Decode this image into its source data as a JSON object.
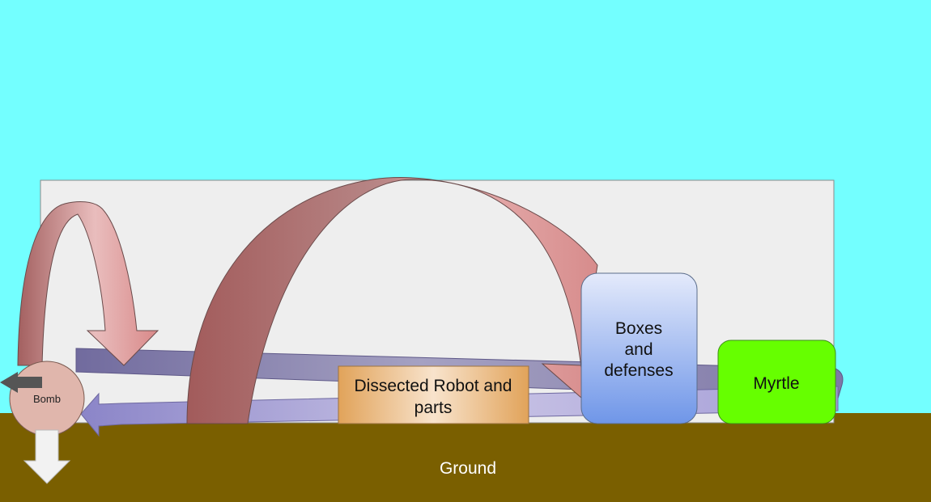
{
  "diagram": {
    "nodes": {
      "bomb": {
        "label": "Bomb"
      },
      "robot": {
        "label_line1": "Dissected Robot and",
        "label_line2": "parts"
      },
      "boxes": {
        "label_line1": "Boxes",
        "label_line2": "and",
        "label_line3": "defenses"
      },
      "myrtle": {
        "label": "Myrtle"
      },
      "ground": {
        "label": "Ground"
      }
    }
  },
  "colors": {
    "sky": "#73FFFF",
    "ground": "#7A5F00",
    "panel": "#EEEEEE",
    "myrtle": "#66FF00",
    "bomb": "#E0B6AC",
    "red_arrow": "#C98787",
    "purple_arrow": "#8F87C0"
  }
}
